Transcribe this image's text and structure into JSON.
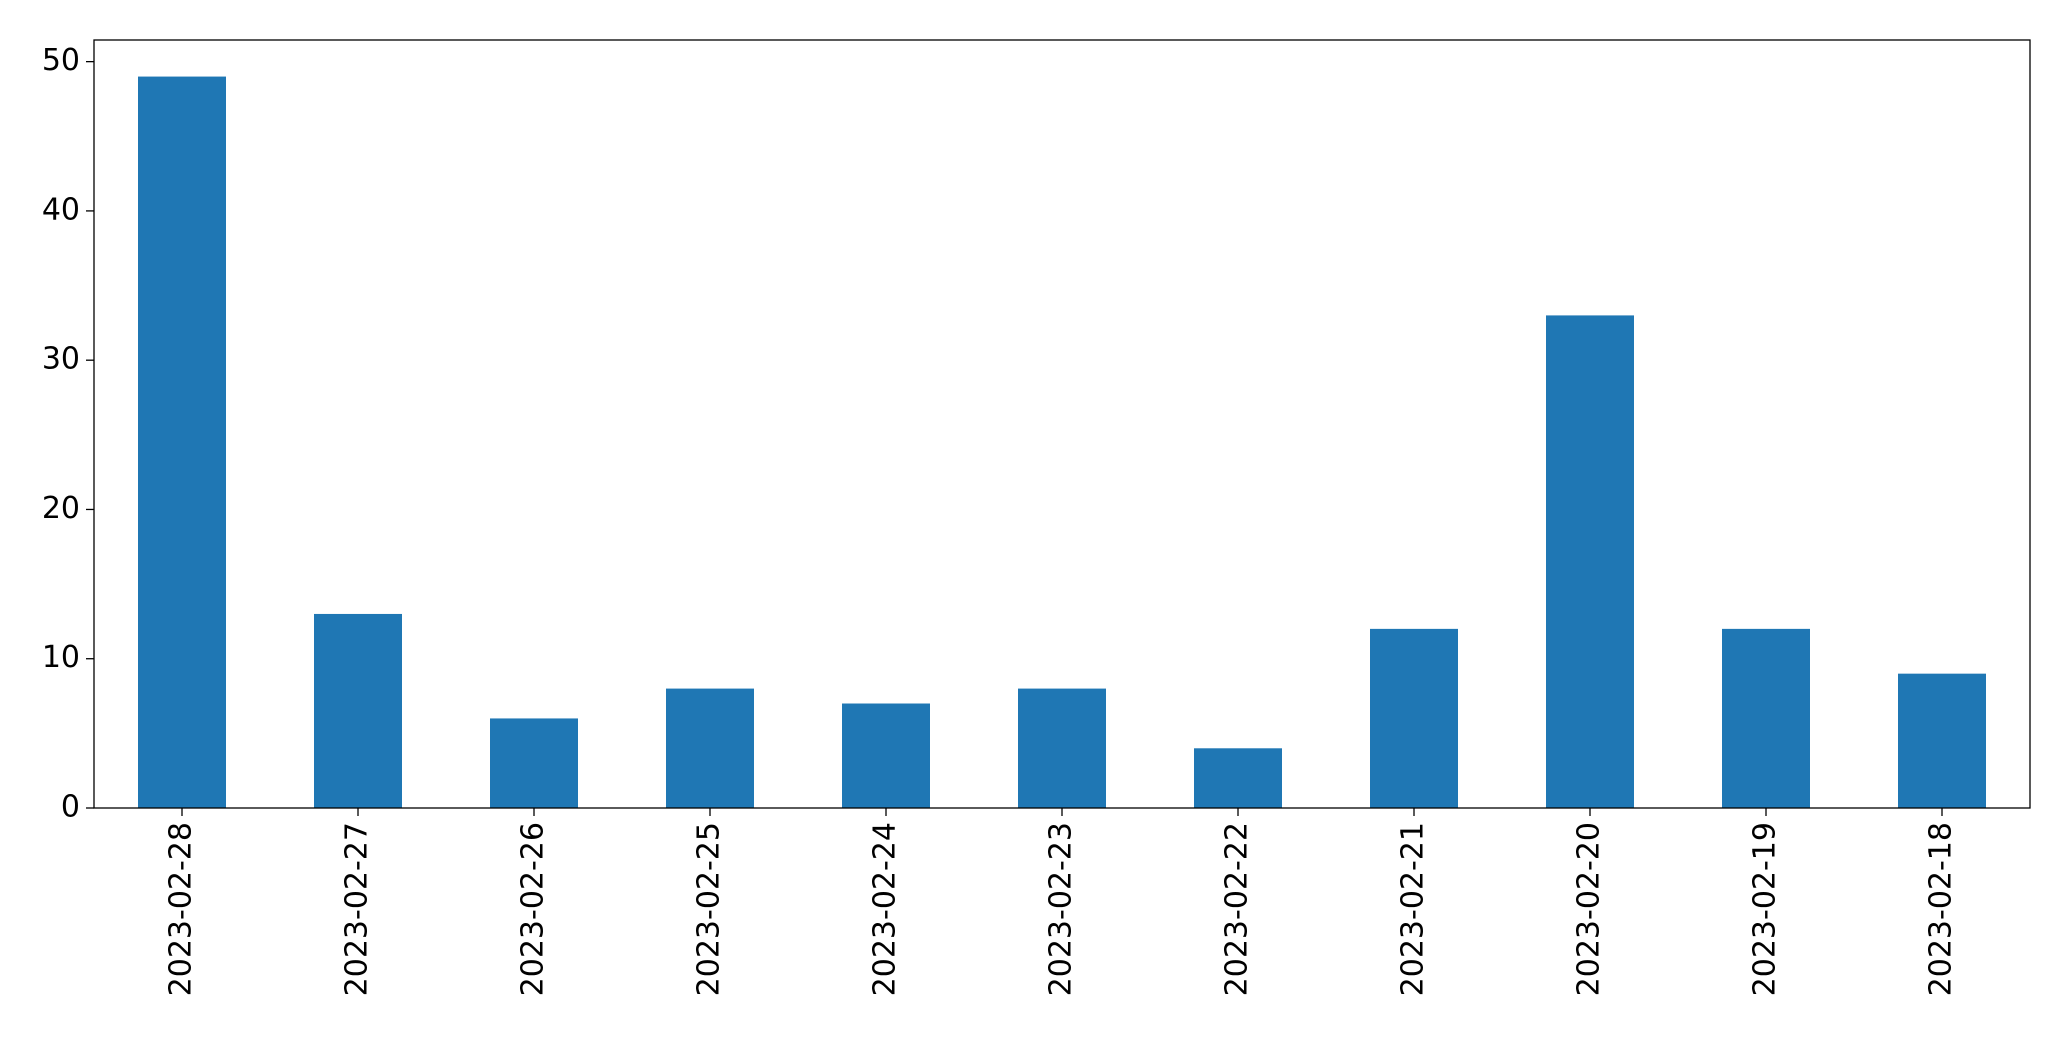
{
  "chart_data": {
    "type": "bar",
    "categories": [
      "2023-02-28",
      "2023-02-27",
      "2023-02-26",
      "2023-02-25",
      "2023-02-24",
      "2023-02-23",
      "2023-02-22",
      "2023-02-21",
      "2023-02-20",
      "2023-02-19",
      "2023-02-18"
    ],
    "values": [
      49,
      13,
      6,
      8,
      7,
      8,
      4,
      12,
      33,
      12,
      9
    ],
    "color": "#1f77b4",
    "ylim": [
      0,
      51.45
    ],
    "yticks": [
      0,
      10,
      20,
      30,
      40,
      50
    ],
    "grid": false
  }
}
